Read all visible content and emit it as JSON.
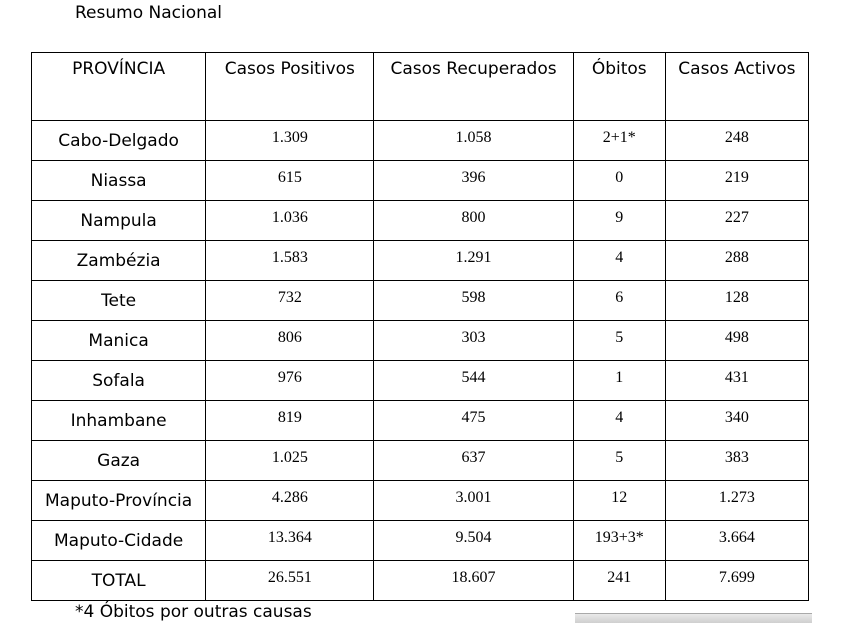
{
  "title": "Resumo Nacional",
  "headers": [
    "PROVÍNCIA",
    "Casos Positivos",
    "Casos Recuperados",
    "Óbitos",
    "Casos Activos"
  ],
  "rows": [
    [
      "Cabo-Delgado",
      "1.309",
      "1.058",
      "2+1*",
      "248"
    ],
    [
      "Niassa",
      "615",
      "396",
      "0",
      "219"
    ],
    [
      "Nampula",
      "1.036",
      "800",
      "9",
      "227"
    ],
    [
      "Zambézia",
      "1.583",
      "1.291",
      "4",
      "288"
    ],
    [
      "Tete",
      "732",
      "598",
      "6",
      "128"
    ],
    [
      "Manica",
      "806",
      "303",
      "5",
      "498"
    ],
    [
      "Sofala",
      "976",
      "544",
      "1",
      "431"
    ],
    [
      "Inhambane",
      "819",
      "475",
      "4",
      "340"
    ],
    [
      "Gaza",
      "1.025",
      "637",
      "5",
      "383"
    ],
    [
      "Maputo-Província",
      "4.286",
      "3.001",
      "12",
      "1.273"
    ],
    [
      "Maputo-Cidade",
      "13.364",
      "9.504",
      "193+3*",
      "3.664"
    ],
    [
      "TOTAL",
      "26.551",
      "18.607",
      "241",
      "7.699"
    ]
  ],
  "footnote": "*4 Óbitos por outras causas"
}
